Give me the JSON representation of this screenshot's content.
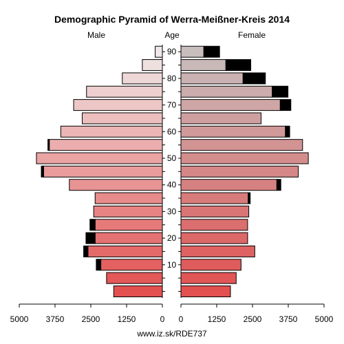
{
  "chart_data": {
    "type": "bar",
    "title": "Demographic Pyramid of Werra-Meißner-Kreis 2014",
    "left_label": "Male",
    "center_label": "Age",
    "right_label": "Female",
    "footer": "www.iz.sk/RDE737",
    "age_ticks": [
      "10",
      "20",
      "30",
      "40",
      "50",
      "60",
      "70",
      "80",
      "90"
    ],
    "x_ticks_left": [
      "5000",
      "3750",
      "2500",
      "1250",
      "0"
    ],
    "x_ticks_right": [
      "0",
      "1250",
      "2500",
      "3750",
      "5000"
    ],
    "xlim": [
      0,
      5000
    ],
    "age_groups": [
      "0-4",
      "5-9",
      "10-14",
      "15-19",
      "20-24",
      "25-29",
      "30-34",
      "35-39",
      "40-44",
      "45-49",
      "50-54",
      "55-59",
      "60-64",
      "65-69",
      "70-74",
      "75-79",
      "80-84",
      "85-89",
      "90+"
    ],
    "series": [
      {
        "name": "Male",
        "values": [
          1700,
          1950,
          2150,
          2600,
          2350,
          2350,
          2400,
          2350,
          3250,
          4150,
          4400,
          3950,
          3550,
          2800,
          3100,
          2650,
          1400,
          700,
          250
        ],
        "excess": [
          0,
          0,
          160,
          150,
          320,
          180,
          0,
          0,
          0,
          80,
          0,
          50,
          0,
          0,
          0,
          0,
          0,
          0,
          0
        ]
      },
      {
        "name": "Female",
        "values": [
          1730,
          1930,
          2100,
          2580,
          2330,
          2330,
          2370,
          2350,
          3350,
          4100,
          4450,
          4250,
          3650,
          2800,
          3470,
          3190,
          2170,
          1570,
          800
        ],
        "excess": [
          0,
          0,
          0,
          0,
          0,
          0,
          0,
          70,
          140,
          0,
          0,
          0,
          150,
          0,
          370,
          550,
          780,
          870,
          550
        ]
      }
    ],
    "colors": {
      "excess": "#000000",
      "stroke": "#000000"
    }
  }
}
